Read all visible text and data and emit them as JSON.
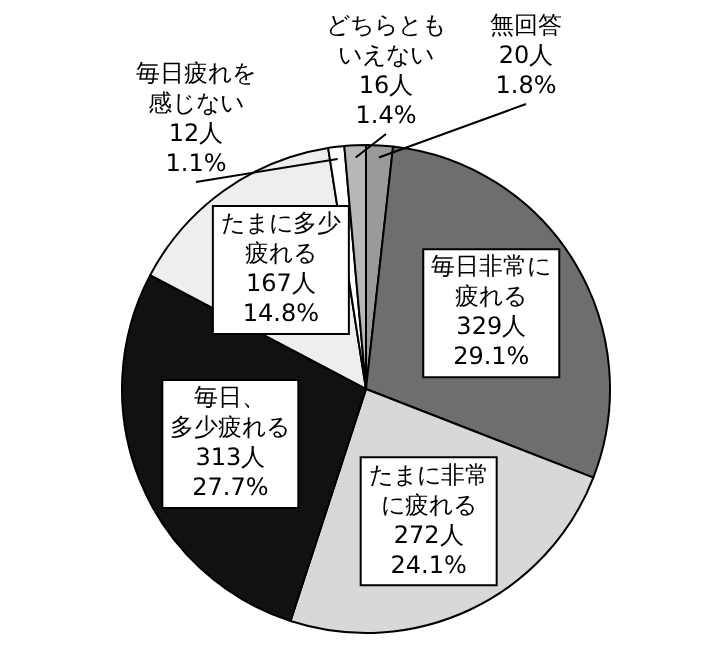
{
  "chart_data": {
    "type": "pie",
    "categories": [
      "無回答",
      "毎日非常に疲れる",
      "たまに非常に疲れる",
      "毎日、多少疲れる",
      "たまに多少疲れる",
      "毎日疲れを感じない",
      "どちらともいえない"
    ],
    "values": [
      20,
      329,
      272,
      313,
      167,
      12,
      16
    ],
    "value_labels": [
      "20人\n1.8%",
      "329人\n29.1%",
      "272人\n24.1%",
      "313人\n27.7%",
      "167人\n14.8%",
      "12人\n1.1%",
      "16人\n1.4%"
    ],
    "colors": [
      "#9a9a9a",
      "#6e6e6e",
      "#d8d8d8",
      "#111111",
      "#eeeeee",
      "#ffffff",
      "#b8b8b8"
    ],
    "legend": false
  }
}
